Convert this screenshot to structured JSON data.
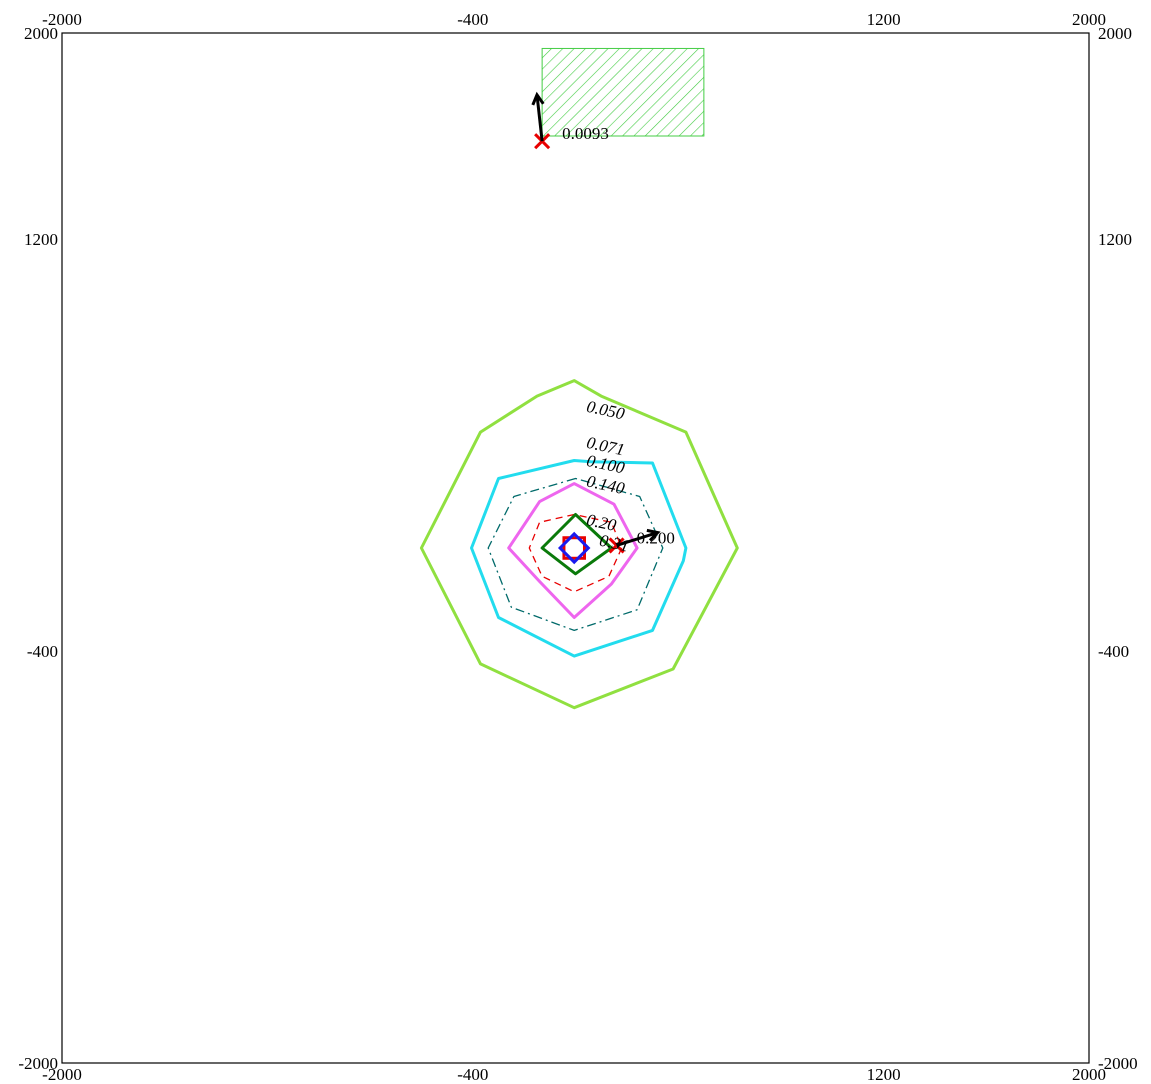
{
  "chart_data": {
    "type": "contour",
    "xlim": [
      -2000,
      2000
    ],
    "ylim": [
      -2000,
      2000
    ],
    "grid": false,
    "ticks": {
      "x_top": [
        "-2000",
        "-400",
        "1200",
        "2000"
      ],
      "x_bottom": [
        "-2000",
        "-400",
        "1200",
        "2000"
      ],
      "y_left": [
        "2000",
        "1200",
        "-400",
        "-2000"
      ],
      "y_right": [
        "2000",
        "1200",
        "-400",
        "-2000"
      ],
      "x_values": [
        -2000,
        -400,
        1200,
        2000
      ],
      "y_values": [
        2000,
        1200,
        -400,
        -2000
      ]
    },
    "contours": [
      {
        "level": "0.050",
        "color": "#90e040",
        "style": "solid",
        "label_at": [
          40,
          530
        ],
        "points": [
          [
            -5,
            650
          ],
          [
            -150,
            590
          ],
          [
            -370,
            450
          ],
          [
            -600,
            0
          ],
          [
            -370,
            -450
          ],
          [
            -5,
            -620
          ],
          [
            380,
            -470
          ],
          [
            630,
            0
          ],
          [
            430,
            450
          ],
          [
            100,
            590
          ]
        ]
      },
      {
        "level": "0.071",
        "color": "#22dcee",
        "style": "solid",
        "label_at": [
          40,
          390
        ],
        "points": [
          [
            -5,
            340
          ],
          [
            -300,
            270
          ],
          [
            -405,
            0
          ],
          [
            -300,
            -270
          ],
          [
            -5,
            -420
          ],
          [
            300,
            -320
          ],
          [
            420,
            -50
          ],
          [
            430,
            0
          ],
          [
            300,
            330
          ],
          [
            60,
            335
          ]
        ]
      },
      {
        "level": "0.100",
        "color": "#006a6a",
        "style": "dashdot",
        "label_at": [
          40,
          320
        ],
        "points": [
          [
            0,
            270
          ],
          [
            -240,
            200
          ],
          [
            -340,
            0
          ],
          [
            -250,
            -230
          ],
          [
            -5,
            -320
          ],
          [
            240,
            -240
          ],
          [
            340,
            0
          ],
          [
            250,
            200
          ]
        ]
      },
      {
        "level": "0.140",
        "color": "#ee66ee",
        "style": "solid",
        "label_at": [
          40,
          240
        ],
        "points": [
          [
            -5,
            250
          ],
          [
            -140,
            180
          ],
          [
            -260,
            0
          ],
          [
            -140,
            -130
          ],
          [
            -5,
            -270
          ],
          [
            140,
            -140
          ],
          [
            240,
            0
          ],
          [
            150,
            170
          ]
        ]
      },
      {
        "level": "0.20",
        "color": "#e80000",
        "style": "dashed",
        "label_at": [
          40,
          90
        ],
        "points": [
          [
            -5,
            130
          ],
          [
            -140,
            100
          ],
          [
            -180,
            0
          ],
          [
            -130,
            -110
          ],
          [
            -5,
            -170
          ],
          [
            130,
            -110
          ],
          [
            180,
            0
          ],
          [
            140,
            100
          ]
        ]
      },
      {
        "level": "0.31",
        "color": "#0a7a0a",
        "style": "solid",
        "label_at": [
          90,
          10
        ],
        "points": [
          [
            0,
            130
          ],
          [
            -130,
            0
          ],
          [
            0,
            -100
          ],
          [
            140,
            0
          ]
        ]
      }
    ],
    "source_markers": [
      {
        "name": "red-square",
        "color": "#e80000",
        "x": -5,
        "y": 0,
        "half": 40
      },
      {
        "name": "blue-diamond",
        "color": "#1a1aee",
        "x": -5,
        "y": 0,
        "half": 55
      }
    ],
    "area_source": {
      "x": [
        -130,
        500
      ],
      "y": [
        1600,
        1940
      ],
      "color": "#44cc44",
      "hatch": "diagonal"
    },
    "receptors": [
      {
        "label": "0.0093",
        "x": -130,
        "y": 1580,
        "arrow_to": [
          -150,
          1760
        ]
      },
      {
        "label": "0.200",
        "x": 160,
        "y": 10,
        "arrow_to": [
          320,
          60
        ]
      }
    ]
  }
}
